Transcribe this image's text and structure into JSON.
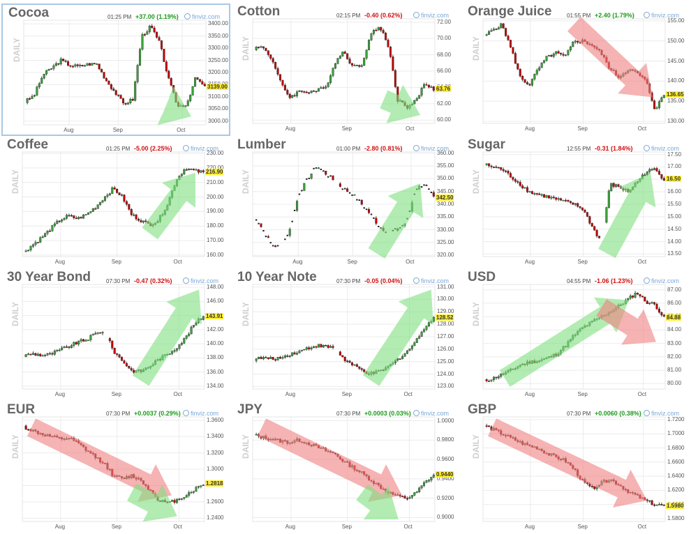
{
  "colors": {
    "up": "#3ba33b",
    "down": "#c80000",
    "arrow_green": "#7fe07f",
    "arrow_red": "#f08080",
    "grid": "#ececec",
    "price_box": "#ffee33"
  },
  "source_label": "finviz.com",
  "side_label": "DAILY",
  "chart_data": [
    {
      "type": "candlestick",
      "title": "Cocoa",
      "time": "01:25 PM",
      "change": "+37.00 (1.19%)",
      "direction": "up",
      "price_label": "3139.00",
      "selected": true,
      "yticks": [
        "3400.00",
        "3350.00",
        "3300.00",
        "3250.00",
        "3200.00",
        "3150.00",
        "3100.00",
        "3050.00",
        "3000.00"
      ],
      "ylim": [
        2985,
        3415
      ],
      "xticks": [
        {
          "label": "Aug",
          "at": 0.25
        },
        {
          "label": "Sep",
          "at": 0.52
        },
        {
          "label": "Oct",
          "at": 0.87
        }
      ],
      "trend": [
        3080,
        3105,
        3190,
        3220,
        3250,
        3230,
        3225,
        3235,
        3235,
        3170,
        3120,
        3070,
        3090,
        3350,
        3390,
        3320,
        3170,
        3060,
        3070,
        3180,
        3139
      ],
      "gaps": [],
      "scatter": false,
      "arrows": [
        {
          "color": "green",
          "from": [
            0.78,
            0.82
          ],
          "to": [
            0.17,
            1.0
          ],
          "head": [
            0.92,
            0.92
          ]
        }
      ]
    },
    {
      "type": "candlestick",
      "title": "Cotton",
      "time": "02:15 PM",
      "change": "-0.40 (0.62%)",
      "direction": "down",
      "price_label": "63.76",
      "yticks": [
        "72.00",
        "70.00",
        "68.00",
        "66.00",
        "64.00",
        "62.00",
        "60.00"
      ],
      "ylim": [
        59.6,
        72.4
      ],
      "xticks": [
        {
          "label": "Aug",
          "at": 0.21
        },
        {
          "label": "Sep",
          "at": 0.52
        },
        {
          "label": "Oct",
          "at": 0.87
        }
      ],
      "trend": [
        68.8,
        69.0,
        67.5,
        64.5,
        62.8,
        63.5,
        63.5,
        63.6,
        64.0,
        67.0,
        68.5,
        66.5,
        66.8,
        70.5,
        71.5,
        69.0,
        62.5,
        61.6,
        62.3,
        64.5,
        63.8
      ],
      "gaps": [],
      "scatter": false,
      "arrows": [
        {
          "color": "green",
          "from": [
            0.72,
            0.77
          ],
          "to": [
            0.9,
            1.0
          ],
          "head": [
            0.92,
            0.92
          ]
        }
      ]
    },
    {
      "type": "candlestick",
      "title": "Orange Juice",
      "time": "01:55 PM",
      "change": "+2.40 (1.79%)",
      "direction": "up",
      "price_label": "136.65",
      "yticks": [
        "155.00",
        "150.00",
        "145.00",
        "140.00",
        "135.00",
        "130.00"
      ],
      "ylim": [
        129.5,
        155.5
      ],
      "xticks": [
        {
          "label": "Aug",
          "at": 0.26
        },
        {
          "label": "Sep",
          "at": 0.55
        },
        {
          "label": "Oct",
          "at": 0.88
        }
      ],
      "trend": [
        151,
        153,
        154,
        148,
        141,
        139,
        143,
        146,
        147,
        146,
        150,
        150,
        149,
        147,
        143,
        141,
        143,
        142,
        140,
        133,
        136.6
      ],
      "gaps": [],
      "scatter": false,
      "arrows": [
        {
          "color": "red",
          "from": [
            0.5,
            0.05
          ],
          "to": [
            0.95,
            0.8
          ],
          "head": [
            0.93,
            0.75
          ]
        }
      ]
    },
    {
      "type": "candlestick",
      "title": "Coffee",
      "time": "01:25 PM",
      "change": "-5.00 (2.25%)",
      "direction": "down",
      "price_label": "216.90",
      "yticks": [
        "230.00",
        "220.00",
        "210.00",
        "200.00",
        "190.00",
        "180.00",
        "170.00",
        "160.00"
      ],
      "ylim": [
        159,
        231
      ],
      "xticks": [
        {
          "label": "Aug",
          "at": 0.21
        },
        {
          "label": "Sep",
          "at": 0.52
        },
        {
          "label": "Oct",
          "at": 0.86
        }
      ],
      "trend": [
        162,
        167,
        172,
        178,
        184,
        187,
        185,
        188,
        193,
        200,
        206,
        200,
        188,
        184,
        181,
        184,
        195,
        212,
        220,
        218,
        216.9
      ],
      "gaps": [],
      "scatter": false,
      "arrows": [
        {
          "color": "green",
          "from": [
            0.7,
            0.78
          ],
          "to": [
            0.95,
            0.25
          ],
          "head": [
            0.95,
            0.2
          ]
        }
      ]
    },
    {
      "type": "candlestick",
      "title": "Lumber",
      "time": "01:00 PM",
      "change": "-2.80 (0.81%)",
      "direction": "down",
      "price_label": "342.50",
      "yticks": [
        "360.00",
        "355.00",
        "350.00",
        "345.00",
        "340.00",
        "335.00",
        "330.00",
        "325.00",
        "320.00"
      ],
      "ylim": [
        319.5,
        360.5
      ],
      "xticks": [
        {
          "label": "Aug",
          "at": 0.25
        },
        {
          "label": "Sep",
          "at": 0.55
        },
        {
          "label": "Oct",
          "at": 0.87
        }
      ],
      "trend": [
        336,
        330,
        324,
        323,
        330,
        344,
        350,
        355,
        352,
        349,
        346,
        344,
        340,
        336,
        331,
        329,
        330,
        333,
        346,
        348,
        342.5
      ],
      "gaps": [
        3,
        9,
        15
      ],
      "scatter": true,
      "arrows": [
        {
          "color": "green",
          "from": [
            0.68,
            0.97
          ],
          "to": [
            0.92,
            0.3
          ],
          "head": [
            0.92,
            0.3
          ]
        }
      ]
    },
    {
      "type": "candlestick",
      "title": "Sugar",
      "time": "12:55 PM",
      "change": "-0.31 (1.84%)",
      "direction": "down",
      "price_label": "16.50",
      "yticks": [
        "17.50",
        "17.00",
        "16.50",
        "16.00",
        "15.50",
        "15.00",
        "14.50",
        "14.00",
        "13.50"
      ],
      "ylim": [
        13.4,
        17.6
      ],
      "xticks": [
        {
          "label": "Aug",
          "at": 0.26
        },
        {
          "label": "Sep",
          "at": 0.55
        },
        {
          "label": "Oct",
          "at": 0.88
        }
      ],
      "trend": [
        17.1,
        17.0,
        16.9,
        16.6,
        16.3,
        16.0,
        15.9,
        15.8,
        15.7,
        15.6,
        15.5,
        15.3,
        14.6,
        14.0,
        16.3,
        16.2,
        16.0,
        16.4,
        16.8,
        16.9,
        16.5
      ],
      "gaps": [
        13
      ],
      "scatter": false,
      "arrows": [
        {
          "color": "green",
          "from": [
            0.68,
            0.97
          ],
          "to": [
            0.92,
            0.25
          ],
          "head": [
            0.92,
            0.2
          ]
        }
      ]
    },
    {
      "type": "candlestick",
      "title": "30 Year Bond",
      "time": "07:30 PM",
      "change": "-0.47 (0.32%)",
      "direction": "down",
      "price_label": "143.91",
      "yticks": [
        "148.00",
        "146.00",
        "144.00",
        "142.00",
        "140.00",
        "138.00",
        "136.00",
        "134.00"
      ],
      "ylim": [
        133.6,
        148.4
      ],
      "xticks": [
        {
          "label": "Aug",
          "at": 0.21
        },
        {
          "label": "Sep",
          "at": 0.52
        },
        {
          "label": "Oct",
          "at": 0.86
        }
      ],
      "trend": [
        138.3,
        138.6,
        138.4,
        138.5,
        139.1,
        139.6,
        140.2,
        140.6,
        141.4,
        141.9,
        139.0,
        137.6,
        136.2,
        136.1,
        136.8,
        137.8,
        138.5,
        139.5,
        140.8,
        142.8,
        143.9
      ],
      "gaps": [
        9
      ],
      "scatter": false,
      "arrows": [
        {
          "color": "green",
          "from": [
            0.65,
            0.92
          ],
          "to": [
            0.95,
            0.1
          ],
          "head": [
            0.97,
            0.05
          ]
        }
      ]
    },
    {
      "type": "candlestick",
      "title": "10 Year Note",
      "time": "07:30 PM",
      "change": "-0.05 (0.04%)",
      "direction": "down",
      "price_label": "128.52",
      "yticks": [
        "131.00",
        "130.00",
        "129.00",
        "128.00",
        "127.00",
        "126.00",
        "125.00",
        "124.00",
        "123.00"
      ],
      "ylim": [
        122.8,
        131.2
      ],
      "xticks": [
        {
          "label": "Aug",
          "at": 0.21
        },
        {
          "label": "Sep",
          "at": 0.52
        },
        {
          "label": "Oct",
          "at": 0.86
        }
      ],
      "trend": [
        125.2,
        125.3,
        125.2,
        125.3,
        125.6,
        125.8,
        126.1,
        126.3,
        126.2,
        126.1,
        125.2,
        124.7,
        124.3,
        124.0,
        124.2,
        124.6,
        125.2,
        125.8,
        126.6,
        127.8,
        128.5
      ],
      "gaps": [
        9
      ],
      "scatter": false,
      "arrows": [
        {
          "color": "green",
          "from": [
            0.65,
            0.92
          ],
          "to": [
            0.98,
            0.05
          ],
          "head": [
            0.98,
            0.05
          ]
        }
      ]
    },
    {
      "type": "candlestick",
      "title": "USD",
      "time": "04:55 PM",
      "change": "-1.06 (1.23%)",
      "direction": "down",
      "price_label": "84.88",
      "yticks": [
        "87.00",
        "86.00",
        "85.00",
        "84.00",
        "83.00",
        "82.00",
        "81.00",
        "80.00"
      ],
      "ylim": [
        79.6,
        87.4
      ],
      "xticks": [
        {
          "label": "Aug",
          "at": 0.26
        },
        {
          "label": "Sep",
          "at": 0.55
        },
        {
          "label": "Oct",
          "at": 0.88
        }
      ],
      "trend": [
        80.2,
        80.4,
        80.7,
        81.0,
        81.4,
        81.6,
        81.7,
        81.9,
        82.2,
        82.8,
        83.6,
        84.2,
        84.6,
        85.0,
        85.4,
        85.8,
        86.3,
        86.8,
        86.1,
        85.9,
        84.9
      ],
      "gaps": [],
      "scatter": false,
      "arrows": [
        {
          "color": "green",
          "from": [
            0.12,
            0.9
          ],
          "to": [
            0.75,
            0.2
          ],
          "head": [
            0.8,
            0.15
          ]
        },
        {
          "color": "red",
          "from": [
            0.65,
            0.22
          ],
          "to": [
            0.93,
            0.55
          ],
          "head": [
            0.95,
            0.55
          ]
        }
      ]
    },
    {
      "type": "candlestick",
      "title": "EUR",
      "time": "07:30 PM",
      "change": "+0.0037 (0.29%)",
      "direction": "up",
      "price_label": "1.2818",
      "yticks": [
        "1.3600",
        "1.3400",
        "1.3200",
        "1.3000",
        "1.2800",
        "1.2600",
        "1.2400"
      ],
      "ylim": [
        1.236,
        1.364
      ],
      "xticks": [
        {
          "label": "Aug",
          "at": 0.21
        },
        {
          "label": "Sep",
          "at": 0.52
        },
        {
          "label": "Oct",
          "at": 0.86
        }
      ],
      "trend": [
        1.352,
        1.347,
        1.343,
        1.34,
        1.337,
        1.338,
        1.332,
        1.323,
        1.315,
        1.307,
        1.292,
        1.288,
        1.292,
        1.287,
        1.275,
        1.263,
        1.258,
        1.262,
        1.268,
        1.275,
        1.282
      ],
      "gaps": [],
      "scatter": false,
      "arrows": [
        {
          "color": "red",
          "from": [
            0.05,
            0.1
          ],
          "to": [
            0.85,
            0.75
          ],
          "head": [
            0.82,
            0.75
          ]
        },
        {
          "color": "green",
          "from": [
            0.6,
            0.72
          ],
          "to": [
            0.95,
            0.62
          ],
          "head": [
            0.85,
            0.95
          ]
        }
      ]
    },
    {
      "type": "candlestick",
      "title": "JPY",
      "time": "07:30 PM",
      "change": "+0.0003 (0.03%)",
      "direction": "up",
      "price_label": "0.9440",
      "yticks": [
        "1.0000",
        "0.9800",
        "0.9600",
        "0.9400",
        "0.9200",
        "0.9000"
      ],
      "ylim": [
        0.896,
        1.004
      ],
      "xticks": [
        {
          "label": "Aug",
          "at": 0.21
        },
        {
          "label": "Sep",
          "at": 0.52
        },
        {
          "label": "Oct",
          "at": 0.86
        }
      ],
      "trend": [
        0.985,
        0.983,
        0.981,
        0.979,
        0.978,
        0.98,
        0.977,
        0.973,
        0.969,
        0.966,
        0.958,
        0.952,
        0.946,
        0.939,
        0.932,
        0.926,
        0.922,
        0.92,
        0.925,
        0.936,
        0.944
      ],
      "gaps": [],
      "scatter": false,
      "arrows": [
        {
          "color": "red",
          "from": [
            0.05,
            0.1
          ],
          "to": [
            0.85,
            0.75
          ],
          "head": [
            0.82,
            0.75
          ]
        },
        {
          "color": "green",
          "from": [
            0.6,
            0.72
          ],
          "to": [
            0.95,
            0.55
          ],
          "head": [
            0.8,
            0.98
          ]
        }
      ]
    },
    {
      "type": "candlestick",
      "title": "GBP",
      "time": "07:30 PM",
      "change": "+0.0060 (0.38%)",
      "direction": "up",
      "price_label": "1.5980",
      "yticks": [
        "1.7200",
        "1.7000",
        "1.6800",
        "1.6600",
        "1.6400",
        "1.6200",
        "1.6000",
        "1.5800"
      ],
      "ylim": [
        1.576,
        1.724
      ],
      "xticks": [
        {
          "label": "Aug",
          "at": 0.26
        },
        {
          "label": "Sep",
          "at": 0.55
        },
        {
          "label": "Oct",
          "at": 0.88
        }
      ],
      "trend": [
        1.712,
        1.706,
        1.7,
        1.694,
        1.688,
        1.683,
        1.68,
        1.672,
        1.667,
        1.662,
        1.65,
        1.632,
        1.623,
        1.63,
        1.636,
        1.628,
        1.619,
        1.612,
        1.605,
        1.6,
        1.598
      ],
      "gaps": [],
      "scatter": false,
      "arrows": [
        {
          "color": "red",
          "from": [
            0.05,
            0.1
          ],
          "to": [
            0.92,
            0.85
          ],
          "head": [
            0.9,
            0.8
          ]
        }
      ]
    }
  ]
}
